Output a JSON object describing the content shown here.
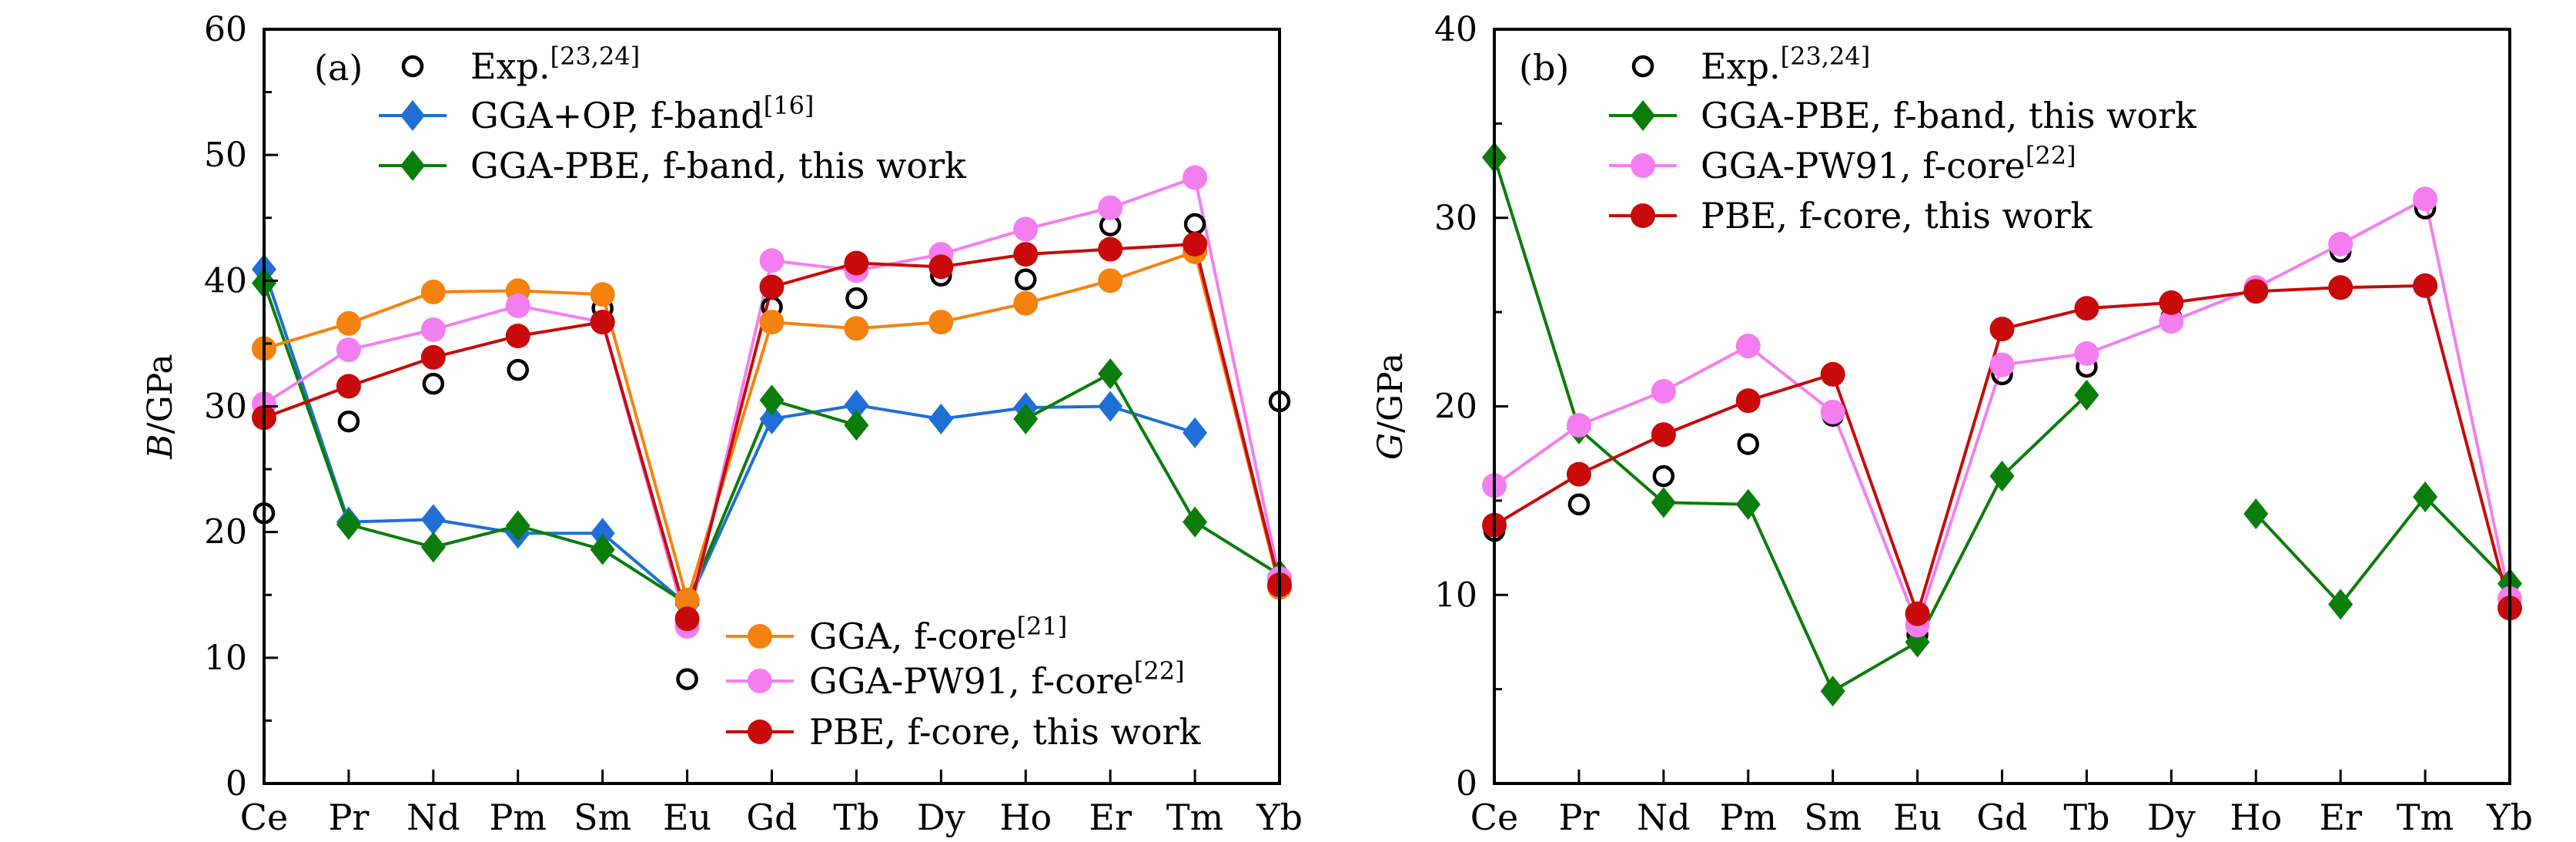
{
  "colors": {
    "exp": "#000000",
    "gga_op": "#1f6fd6",
    "gga_pbe_fband": "#0a7d0a",
    "gga_fcore": "#f5820f",
    "pw91": "#f47ef0",
    "pbe_fcore": "#c80a0a"
  },
  "chart_data": [
    {
      "type": "line",
      "panel_label": "(a)",
      "ylabel_var": "B",
      "ylabel_unit": "/GPa",
      "ylim": [
        0,
        60
      ],
      "yticks": [
        "0",
        "10",
        "20",
        "30",
        "40",
        "50",
        "60"
      ],
      "categories": [
        "Ce",
        "Pr",
        "Nd",
        "Pm",
        "Sm",
        "Eu",
        "Gd",
        "Tb",
        "Dy",
        "Ho",
        "Er",
        "Tm",
        "Yb"
      ],
      "grid": false,
      "legend_placement": "top-left and bottom-right",
      "series": [
        {
          "name": "Exp.",
          "sup": "[23,24]",
          "key": "exp",
          "marker": "open-circle",
          "line": false,
          "values": [
            21.5,
            28.8,
            31.8,
            32.9,
            37.8,
            8.3,
            37.9,
            38.6,
            40.4,
            40.1,
            44.4,
            44.5,
            30.4
          ]
        },
        {
          "name": "GGA+OP, f-band",
          "sup": "[16]",
          "key": "gga_op",
          "marker": "diamond",
          "line": true,
          "values": [
            40.9,
            20.8,
            21.0,
            19.9,
            19.9,
            14.2,
            29.0,
            30.1,
            29.0,
            29.9,
            30.0,
            27.9,
            null
          ]
        },
        {
          "name": "GGA-PBE, f-band, this work",
          "sup": "",
          "key": "gga_pbe_fband",
          "marker": "diamond",
          "line": true,
          "values": [
            39.8,
            20.6,
            18.8,
            20.5,
            18.6,
            14.3,
            30.5,
            28.5,
            null,
            29.0,
            32.6,
            20.8,
            16.6
          ]
        },
        {
          "name": "GGA, f-core",
          "sup": "[21]",
          "key": "gga_fcore",
          "marker": "circle",
          "line": true,
          "values": [
            34.6,
            36.6,
            39.1,
            39.2,
            38.9,
            14.6,
            36.7,
            36.2,
            36.7,
            38.2,
            40.0,
            42.3,
            15.6
          ]
        },
        {
          "name": "GGA-PW91, f-core",
          "sup": "[22]",
          "key": "pw91",
          "marker": "circle",
          "line": true,
          "values": [
            30.2,
            34.5,
            36.1,
            38.0,
            36.7,
            12.5,
            41.6,
            40.8,
            42.1,
            44.1,
            45.8,
            48.2,
            16.3
          ]
        },
        {
          "name": "PBE, f-core, this work",
          "sup": "",
          "key": "pbe_fcore",
          "marker": "circle",
          "line": true,
          "values": [
            29.1,
            31.6,
            33.9,
            35.6,
            36.7,
            13.1,
            39.5,
            41.4,
            41.1,
            42.1,
            42.5,
            42.9,
            15.8
          ]
        }
      ]
    },
    {
      "type": "line",
      "panel_label": "(b)",
      "ylabel_var": "G",
      "ylabel_unit": "/GPa",
      "ylim": [
        0,
        40
      ],
      "yticks": [
        "0",
        "10",
        "20",
        "30",
        "40"
      ],
      "categories": [
        "Ce",
        "Pr",
        "Nd",
        "Pm",
        "Sm",
        "Eu",
        "Gd",
        "Tb",
        "Dy",
        "Ho",
        "Er",
        "Tm",
        "Yb"
      ],
      "grid": false,
      "legend_placement": "top-left",
      "series": [
        {
          "name": "Exp.",
          "sup": "[23,24]",
          "key": "exp",
          "marker": "open-circle",
          "line": false,
          "values": [
            13.4,
            14.8,
            16.3,
            18.0,
            19.5,
            7.9,
            21.7,
            22.1,
            24.7,
            26.3,
            28.2,
            30.5,
            9.8
          ]
        },
        {
          "name": "GGA-PBE, f-band, this work",
          "sup": "",
          "key": "gga_pbe_fband",
          "marker": "diamond",
          "line": true,
          "values": [
            33.2,
            18.8,
            14.9,
            14.8,
            4.9,
            7.5,
            16.3,
            20.6,
            null,
            14.3,
            9.5,
            15.2,
            10.6
          ]
        },
        {
          "name": "GGA-PW91, f-core",
          "sup": "[22]",
          "key": "pw91",
          "marker": "circle",
          "line": true,
          "values": [
            15.8,
            19.0,
            20.8,
            23.2,
            19.7,
            8.4,
            22.2,
            22.8,
            24.5,
            26.3,
            28.6,
            31.0,
            9.8
          ]
        },
        {
          "name": "PBE, f-core, this work",
          "sup": "",
          "key": "pbe_fcore",
          "marker": "circle",
          "line": true,
          "values": [
            13.7,
            16.4,
            18.5,
            20.3,
            21.7,
            9.0,
            24.1,
            25.2,
            25.5,
            26.1,
            26.3,
            26.4,
            9.3
          ]
        }
      ]
    }
  ]
}
